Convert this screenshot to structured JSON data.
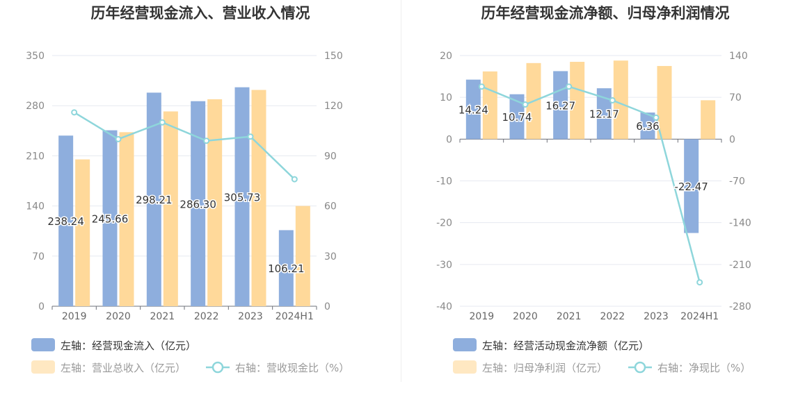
{
  "chart_data": [
    {
      "type": "bar",
      "title": "历年经营现金流入、营业收入情况",
      "categories": [
        "2019",
        "2020",
        "2021",
        "2022",
        "2023",
        "2024H1"
      ],
      "left_axis": {
        "min": 0,
        "max": 350,
        "ticks": [
          0,
          70,
          140,
          210,
          280,
          350
        ]
      },
      "right_axis": {
        "min": 0,
        "max": 150,
        "ticks": [
          0,
          30,
          60,
          90,
          120,
          150
        ]
      },
      "series": [
        {
          "name": "左轴：经营现金流入（亿元）",
          "kind": "bar",
          "axis": "left",
          "color": "#8eaedd",
          "values": [
            238.24,
            245.66,
            298.21,
            286.3,
            305.73,
            106.21
          ],
          "labels": [
            "238.24",
            "245.66",
            "298.21",
            "286.30",
            "305.73",
            "106.21"
          ]
        },
        {
          "name": "左轴：营业总收入（亿元）",
          "kind": "bar",
          "axis": "left",
          "color": "#ffd99a",
          "values": [
            205,
            243,
            272,
            289,
            302,
            140
          ]
        },
        {
          "name": "右轴：营收现金比（%）",
          "kind": "line",
          "axis": "right",
          "color": "#8ed6db",
          "values": [
            116,
            100,
            110,
            99,
            101.5,
            76
          ]
        }
      ]
    },
    {
      "type": "bar",
      "title": "历年经营现金流净额、归母净利润情况",
      "categories": [
        "2019",
        "2020",
        "2021",
        "2022",
        "2023",
        "2024H1"
      ],
      "left_axis": {
        "min": -40,
        "max": 20,
        "ticks": [
          -40,
          -30,
          -20,
          -10,
          0,
          10,
          20
        ]
      },
      "right_axis": {
        "min": -280,
        "max": 140,
        "ticks": [
          -280,
          -210,
          -140,
          -70,
          0,
          70,
          140
        ]
      },
      "series": [
        {
          "name": "左轴：经营活动现金流净额（亿元）",
          "kind": "bar",
          "axis": "left",
          "color": "#8eaedd",
          "values": [
            14.24,
            10.74,
            16.27,
            12.17,
            6.36,
            -22.47
          ],
          "labels": [
            "14.24",
            "10.74",
            "16.27",
            "12.17",
            "6.36",
            "-22.47"
          ]
        },
        {
          "name": "左轴：归母净利润（亿元）",
          "kind": "bar",
          "axis": "left",
          "color": "#ffd99a",
          "values": [
            16.2,
            18.2,
            18.5,
            18.8,
            17.5,
            9.3
          ]
        },
        {
          "name": "右轴：净现比（%）",
          "kind": "line",
          "axis": "right",
          "color": "#8ed6db",
          "values": [
            88,
            58,
            88,
            65,
            36,
            -240
          ]
        }
      ]
    }
  ]
}
